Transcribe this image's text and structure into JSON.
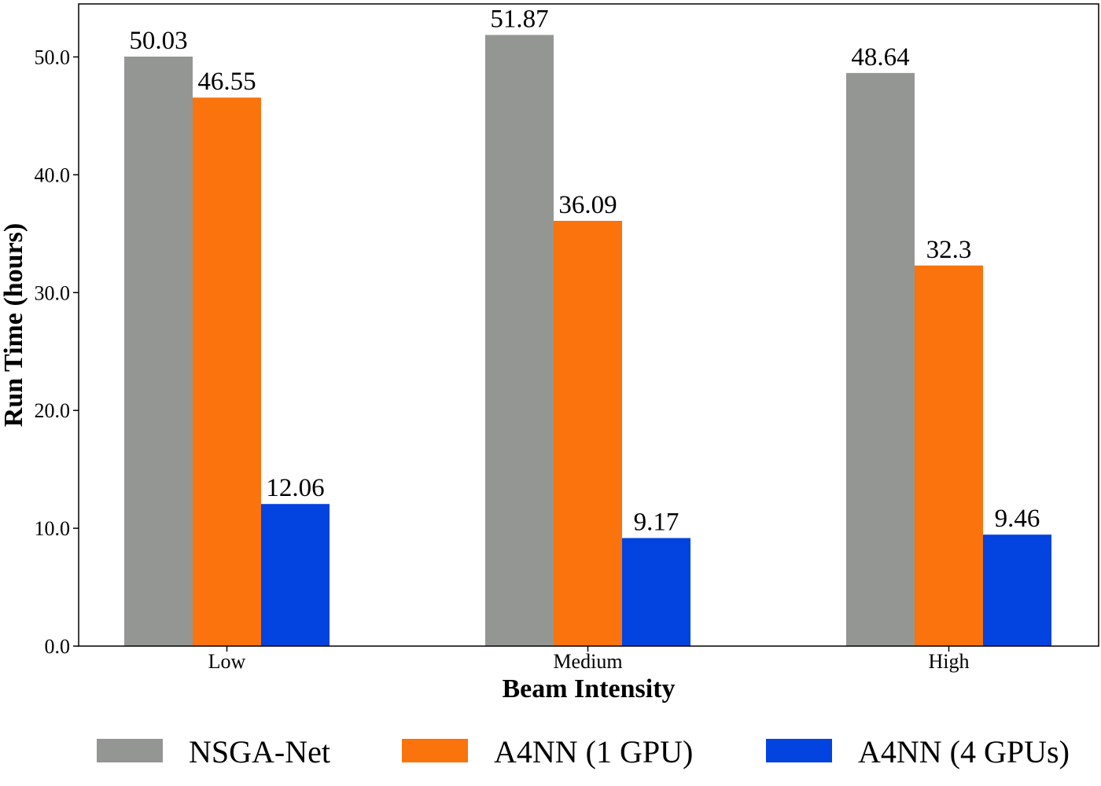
{
  "chart_data": {
    "type": "bar",
    "title": "",
    "xlabel": "Beam Intensity",
    "ylabel": "Run Time (hours)",
    "categories": [
      "Low",
      "Medium",
      "High"
    ],
    "ylim": [
      0,
      54.5
    ],
    "yticks": [
      "0.0",
      "10.0",
      "20.0",
      "30.0",
      "40.0",
      "50.0"
    ],
    "legend_position": "bottom",
    "grid": false,
    "series": [
      {
        "name": "NSGA-Net",
        "color": "#949694",
        "values": [
          50.03,
          51.87,
          48.64
        ],
        "labels": [
          "50.03",
          "51.87",
          "48.64"
        ]
      },
      {
        "name": "A4NN (1 GPU)",
        "color": "#fa730c",
        "values": [
          46.55,
          36.09,
          32.3
        ],
        "labels": [
          "46.55",
          "36.09",
          "32.3"
        ]
      },
      {
        "name": "A4NN (4 GPUs)",
        "color": "#0343df",
        "values": [
          12.06,
          9.17,
          9.46
        ],
        "labels": [
          "12.06",
          "9.17",
          "9.46"
        ]
      }
    ]
  }
}
